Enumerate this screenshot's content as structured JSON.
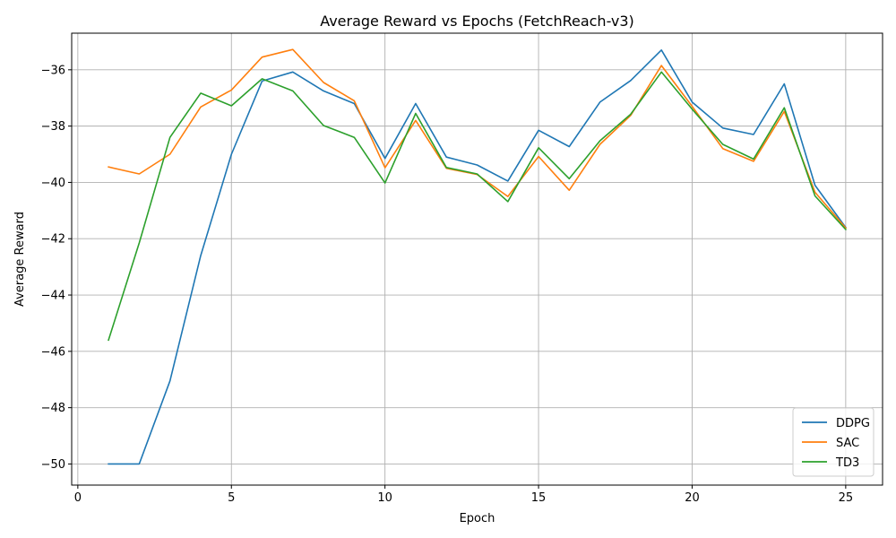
{
  "chart_data": {
    "type": "line",
    "title": "Average Reward vs Epochs (FetchReach-v3)",
    "xlabel": "Epoch",
    "ylabel": "Average Reward",
    "xlim": [
      -0.2,
      26.2
    ],
    "ylim": [
      -50.75,
      -34.7
    ],
    "xticks": [
      0,
      5,
      10,
      15,
      20,
      25
    ],
    "yticks": [
      -50,
      -48,
      -46,
      -44,
      -42,
      -40,
      -38,
      -36
    ],
    "grid": true,
    "legend_position": "lower-right",
    "x": [
      1,
      2,
      3,
      4,
      5,
      6,
      7,
      8,
      9,
      10,
      11,
      12,
      13,
      14,
      15,
      16,
      17,
      18,
      19,
      20,
      21,
      22,
      23,
      24,
      25
    ],
    "series": [
      {
        "name": "DDPG",
        "color": "#1f77b4",
        "values": [
          -50.0,
          -50.0,
          -47.05,
          -42.6,
          -39.0,
          -36.4,
          -36.08,
          -36.75,
          -37.2,
          -39.15,
          -37.2,
          -39.1,
          -39.38,
          -39.95,
          -38.15,
          -38.73,
          -37.15,
          -36.38,
          -35.3,
          -37.15,
          -38.07,
          -38.3,
          -36.5,
          -40.1,
          -41.6
        ]
      },
      {
        "name": "SAC",
        "color": "#ff7f0e",
        "values": [
          -39.45,
          -39.7,
          -39.0,
          -37.32,
          -36.72,
          -35.55,
          -35.28,
          -36.45,
          -37.1,
          -39.48,
          -37.8,
          -39.5,
          -39.72,
          -40.5,
          -39.08,
          -40.28,
          -38.65,
          -37.62,
          -35.85,
          -37.3,
          -38.8,
          -39.25,
          -37.48,
          -40.35,
          -41.62
        ]
      },
      {
        "name": "TD3",
        "color": "#2ca02c",
        "values": [
          -45.6,
          -42.15,
          -38.4,
          -36.83,
          -37.28,
          -36.32,
          -36.75,
          -37.98,
          -38.4,
          -40.02,
          -37.55,
          -39.47,
          -39.7,
          -40.68,
          -38.77,
          -39.87,
          -38.52,
          -37.58,
          -36.08,
          -37.4,
          -38.65,
          -39.17,
          -37.35,
          -40.48,
          -41.67
        ]
      }
    ]
  }
}
